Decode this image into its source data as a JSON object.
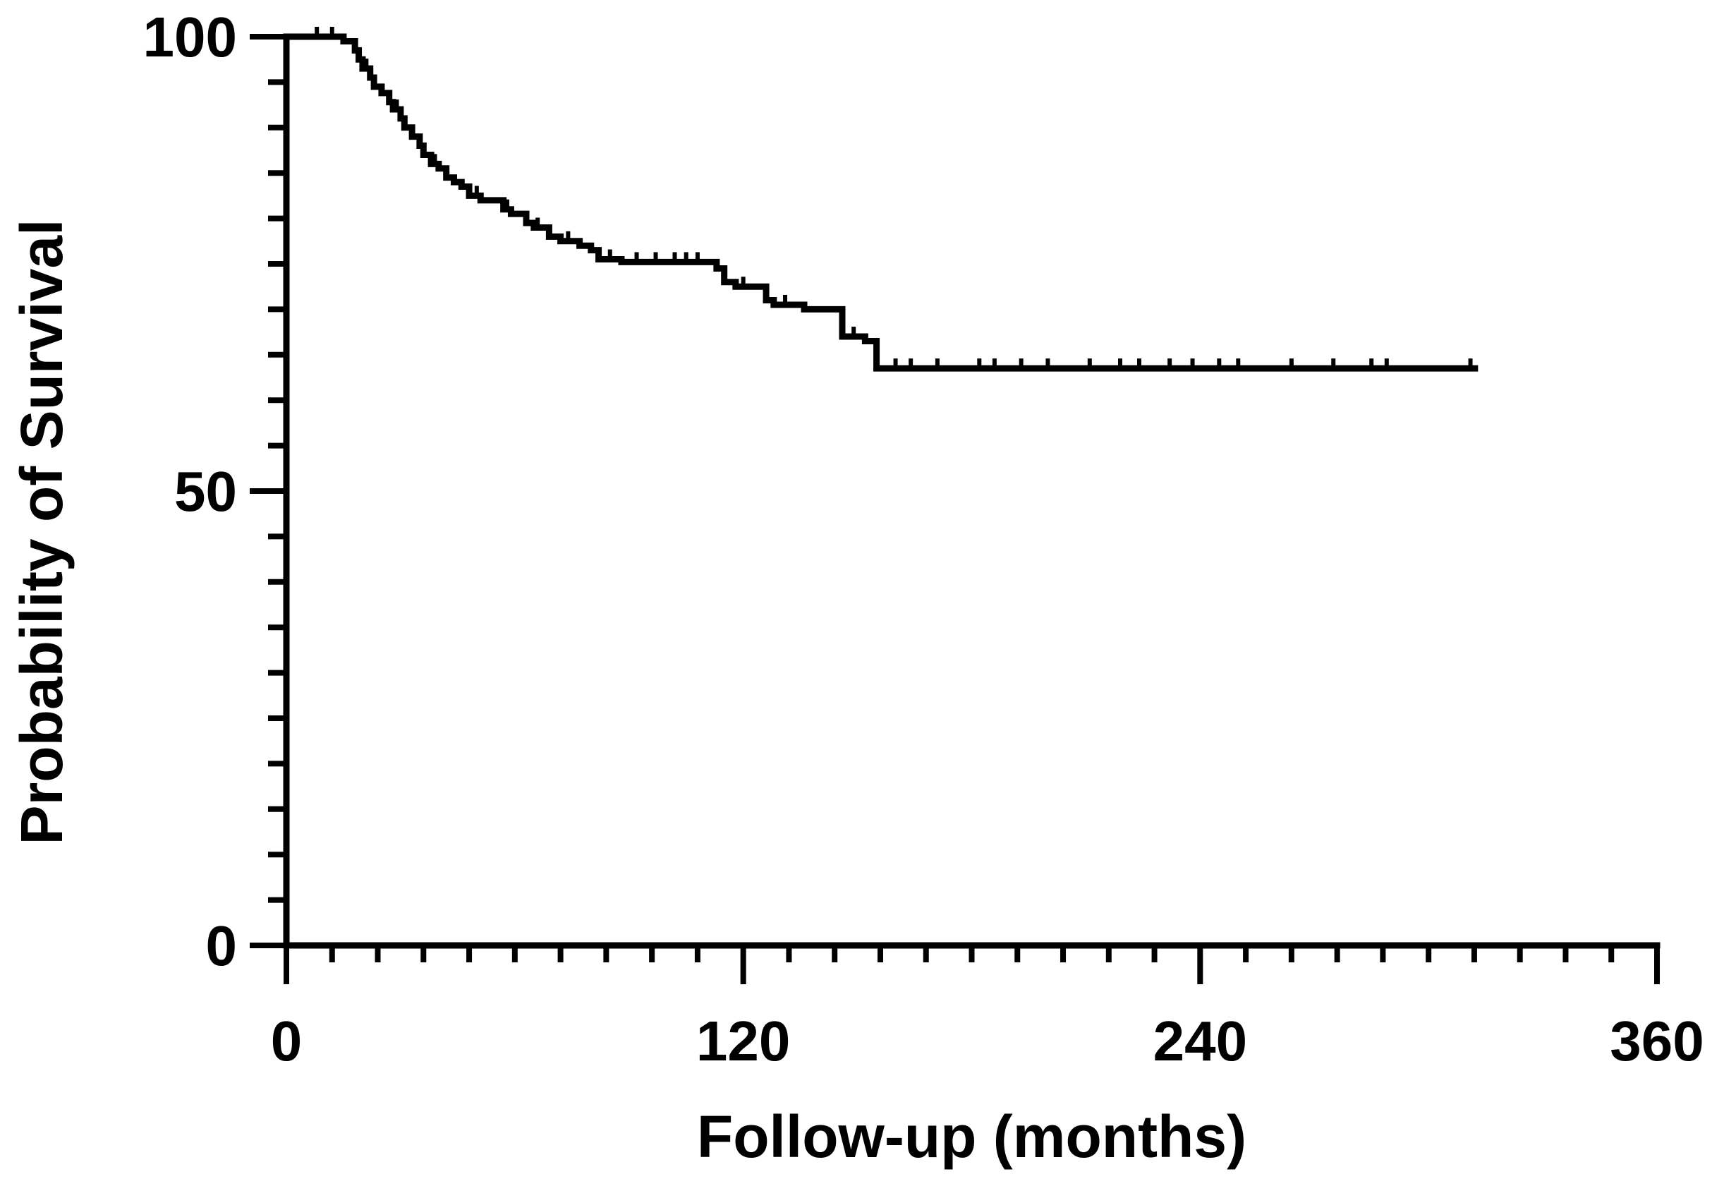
{
  "chart_data": {
    "type": "line",
    "subtype": "kaplan-meier step",
    "title": "",
    "xlabel": "Follow-up (months)",
    "ylabel": "Probability of Survival",
    "xlim": [
      0,
      360
    ],
    "ylim": [
      0,
      100
    ],
    "xticks": [
      0,
      120,
      240,
      360
    ],
    "xtick_labels": [
      "0",
      "120",
      "240",
      "360"
    ],
    "x_minor_step": 12,
    "yticks": [
      0,
      50,
      100
    ],
    "ytick_labels": [
      "0",
      "50",
      "100"
    ],
    "y_minor_step": 5,
    "grid": false,
    "color": "#000000",
    "steps": [
      [
        0,
        100
      ],
      [
        15,
        99.5
      ],
      [
        18,
        98.5
      ],
      [
        19,
        97.5
      ],
      [
        20,
        96.5
      ],
      [
        22,
        95.5
      ],
      [
        23,
        94.5
      ],
      [
        25,
        93.8
      ],
      [
        27,
        92.8
      ],
      [
        28,
        92
      ],
      [
        30,
        91
      ],
      [
        31,
        90
      ],
      [
        33,
        89
      ],
      [
        35,
        88
      ],
      [
        36,
        87
      ],
      [
        38,
        86
      ],
      [
        40,
        85.5
      ],
      [
        42,
        84.5
      ],
      [
        44,
        84
      ],
      [
        46,
        83.5
      ],
      [
        48,
        82.5
      ],
      [
        51,
        82
      ],
      [
        57,
        81
      ],
      [
        59,
        80.5
      ],
      [
        63,
        79.5
      ],
      [
        65,
        79
      ],
      [
        69,
        78
      ],
      [
        72,
        77.5
      ],
      [
        77,
        77
      ],
      [
        80,
        76.5
      ],
      [
        82,
        75.5
      ],
      [
        88,
        75.2
      ],
      [
        113,
        74.5
      ],
      [
        115,
        73
      ],
      [
        118,
        72.5
      ],
      [
        126,
        71
      ],
      [
        128,
        70.5
      ],
      [
        136,
        70
      ],
      [
        146,
        67
      ],
      [
        152,
        66.5
      ],
      [
        155,
        63.5
      ],
      [
        313,
        63.5
      ]
    ],
    "censored_times": [
      8,
      12,
      21,
      29,
      39,
      50,
      58,
      66,
      74,
      85,
      92,
      97,
      102,
      105,
      108,
      120,
      131,
      149,
      160,
      164,
      171,
      182,
      186,
      193,
      200,
      211,
      219,
      224,
      232,
      238,
      245,
      250,
      264,
      275,
      285,
      289,
      311
    ]
  }
}
